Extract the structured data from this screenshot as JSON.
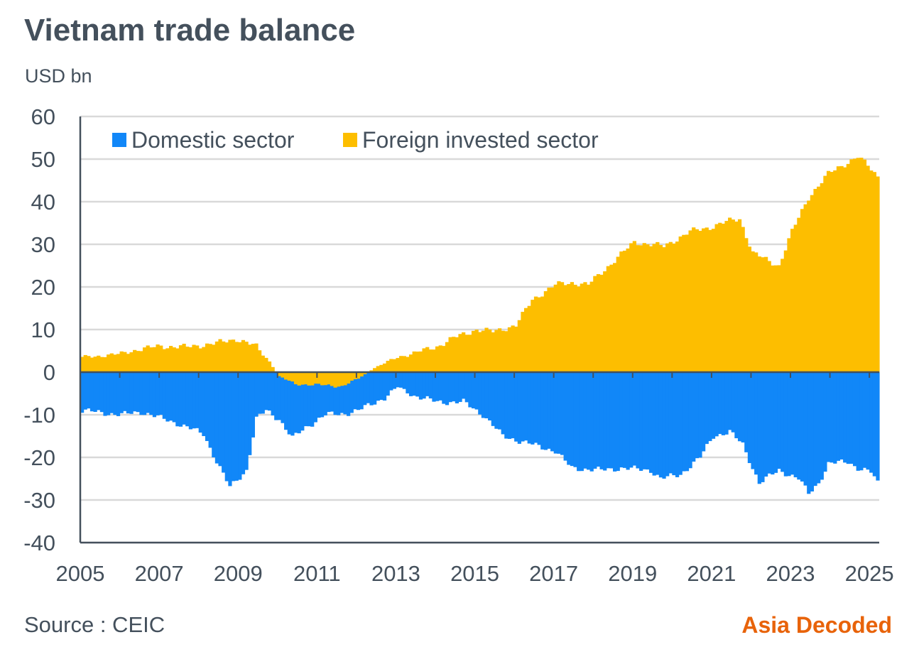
{
  "header": {
    "title": "Vietnam trade balance",
    "unit": "USD bn"
  },
  "footer": {
    "source": "Source : CEIC",
    "brand": "Asia Decoded"
  },
  "colors": {
    "domestic": "#1187f8",
    "foreign": "#fdbe00",
    "grid": "#d9d9d9",
    "axis": "#44505c",
    "brand": "#e8630a"
  },
  "chart_data": {
    "type": "area",
    "stacked": false,
    "frequency": "monthly, 12-month rolling sum",
    "x_range": [
      "2005-01",
      "2025-03"
    ],
    "ylim": [
      -40,
      60
    ],
    "yticks": [
      60,
      50,
      40,
      30,
      20,
      10,
      0,
      -10,
      -20,
      -30,
      -40
    ],
    "xticks": [
      "2005",
      "2007",
      "2009",
      "2011",
      "2013",
      "2015",
      "2017",
      "2019",
      "2021",
      "2023",
      "2025"
    ],
    "grid": true,
    "legend_position": "top-left",
    "series": [
      {
        "name": "Domestic sector",
        "keypoints": [
          [
            "2005-01",
            -9
          ],
          [
            "2006-01",
            -10
          ],
          [
            "2006-07",
            -9.3
          ],
          [
            "2007-06",
            -12
          ],
          [
            "2008-02",
            -14.5
          ],
          [
            "2008-06",
            -21
          ],
          [
            "2008-10",
            -27
          ],
          [
            "2009-03",
            -23
          ],
          [
            "2009-06",
            -11
          ],
          [
            "2009-09",
            -9
          ],
          [
            "2010-01",
            -11
          ],
          [
            "2010-05",
            -15.5
          ],
          [
            "2010-09",
            -13
          ],
          [
            "2011-03",
            -10
          ],
          [
            "2011-09",
            -9.7
          ],
          [
            "2012-01",
            -9
          ],
          [
            "2012-05",
            -7.5
          ],
          [
            "2012-09",
            -6
          ],
          [
            "2013-01",
            -3.5
          ],
          [
            "2013-06",
            -5.5
          ],
          [
            "2014-01",
            -7
          ],
          [
            "2014-09",
            -7
          ],
          [
            "2015-03",
            -10
          ],
          [
            "2015-09",
            -15
          ],
          [
            "2016-06",
            -17
          ],
          [
            "2017-01",
            -18.5
          ],
          [
            "2017-06",
            -22.5
          ],
          [
            "2018-03",
            -23
          ],
          [
            "2018-09",
            -22.5
          ],
          [
            "2019-06",
            -23
          ],
          [
            "2019-09",
            -25
          ],
          [
            "2020-03",
            -24
          ],
          [
            "2020-09",
            -20
          ],
          [
            "2021-01",
            -15
          ],
          [
            "2021-06",
            -14
          ],
          [
            "2021-10",
            -17
          ],
          [
            "2022-03",
            -26
          ],
          [
            "2022-09",
            -23
          ],
          [
            "2023-03",
            -25
          ],
          [
            "2023-06",
            -28.5
          ],
          [
            "2023-09",
            -26
          ],
          [
            "2023-12",
            -21.5
          ],
          [
            "2024-06",
            -21
          ],
          [
            "2024-09",
            -22.5
          ],
          [
            "2025-01",
            -23.5
          ],
          [
            "2025-03",
            -26
          ]
        ]
      },
      {
        "name": "Foreign invested sector",
        "keypoints": [
          [
            "2005-01",
            3.5
          ],
          [
            "2005-06",
            3.8
          ],
          [
            "2005-12",
            4.2
          ],
          [
            "2006-06",
            5.3
          ],
          [
            "2007-01",
            6.1
          ],
          [
            "2007-09",
            5.9
          ],
          [
            "2008-06",
            6.8
          ],
          [
            "2008-12",
            7.8
          ],
          [
            "2009-06",
            6
          ],
          [
            "2009-10",
            2.5
          ],
          [
            "2010-01",
            -1
          ],
          [
            "2010-06",
            -2.8
          ],
          [
            "2011-01",
            -3
          ],
          [
            "2011-08",
            -3.3
          ],
          [
            "2012-01",
            -1.5
          ],
          [
            "2012-06",
            1
          ],
          [
            "2013-01",
            3.5
          ],
          [
            "2013-06",
            4.5
          ],
          [
            "2014-01",
            6
          ],
          [
            "2014-06",
            8
          ],
          [
            "2015-01",
            10
          ],
          [
            "2015-06",
            9.5
          ],
          [
            "2016-01",
            11
          ],
          [
            "2016-06",
            17
          ],
          [
            "2017-01",
            20.5
          ],
          [
            "2017-06",
            21
          ],
          [
            "2017-11",
            20.5
          ],
          [
            "2018-06",
            25.5
          ],
          [
            "2019-01",
            30.5
          ],
          [
            "2019-06",
            30
          ],
          [
            "2019-10",
            29.5
          ],
          [
            "2020-06",
            33
          ],
          [
            "2020-12",
            34
          ],
          [
            "2021-06",
            35.5
          ],
          [
            "2021-09",
            36
          ],
          [
            "2022-01",
            28
          ],
          [
            "2022-06",
            26
          ],
          [
            "2022-09",
            25
          ],
          [
            "2023-01",
            33
          ],
          [
            "2023-06",
            41
          ],
          [
            "2023-12",
            46.5
          ],
          [
            "2024-03",
            48
          ],
          [
            "2024-09",
            50.5
          ],
          [
            "2024-12",
            48.5
          ],
          [
            "2025-03",
            46
          ]
        ]
      }
    ]
  }
}
